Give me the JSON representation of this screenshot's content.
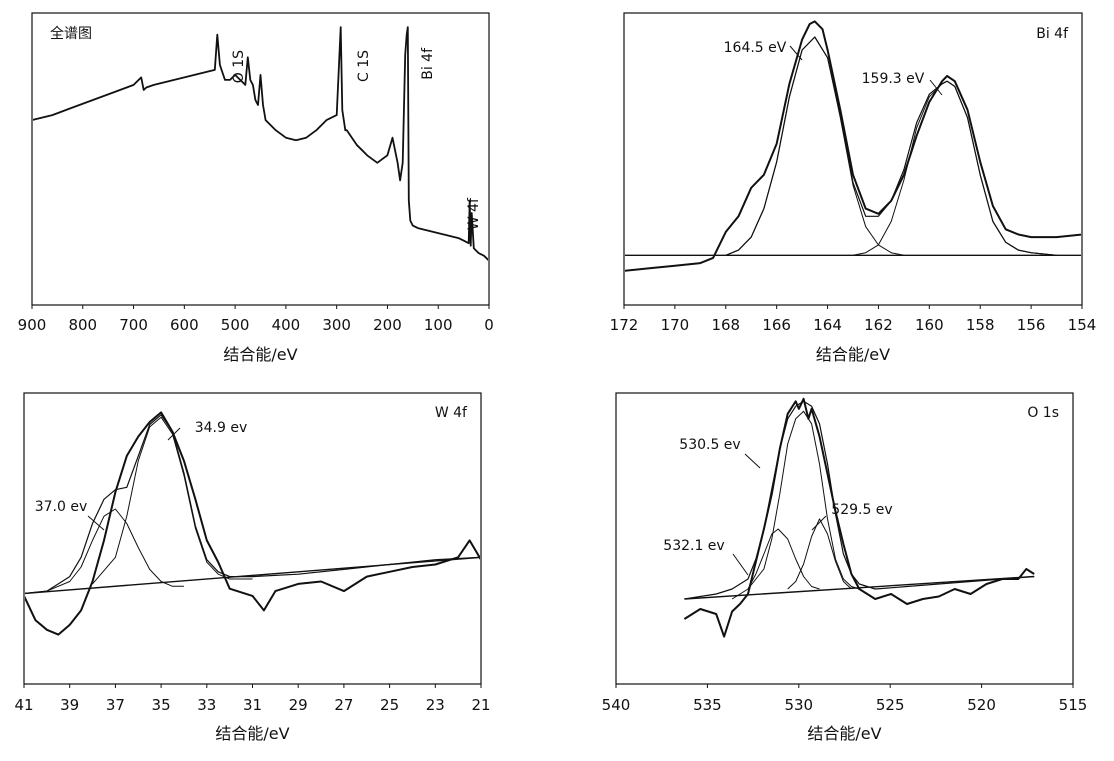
{
  "chart_data": [
    {
      "type": "line",
      "title": "全谱图",
      "xlabel": "结合能/eV",
      "ylabel": "",
      "x_reversed": true,
      "xlim": [
        900,
        0
      ],
      "xticks": [
        900,
        800,
        700,
        600,
        500,
        400,
        300,
        200,
        100,
        0
      ],
      "xtick_labels": [
        "900",
        "800",
        "700",
        "600",
        "500",
        "400",
        "300",
        "200",
        "100",
        "0"
      ],
      "ylim": [
        0,
        100
      ],
      "grid": false,
      "series": [
        {
          "role": "spectrum",
          "x": [
            900,
            860,
            820,
            780,
            740,
            700,
            685,
            680,
            675,
            660,
            620,
            580,
            560,
            540,
            535,
            530,
            525,
            520,
            510,
            500,
            490,
            480,
            475,
            470,
            465,
            460,
            455,
            450,
            445,
            440,
            420,
            400,
            380,
            360,
            340,
            320,
            300,
            292,
            289,
            286,
            283,
            280,
            270,
            260,
            250,
            240,
            220,
            200,
            190,
            180,
            175,
            170,
            165,
            162,
            160,
            158,
            155,
            150,
            140,
            120,
            100,
            80,
            60,
            50,
            40,
            38,
            36,
            34,
            30,
            25,
            20,
            10,
            5,
            0
          ],
          "y": [
            62,
            64,
            67,
            70,
            73,
            76,
            79,
            74,
            75,
            76,
            78,
            80,
            81,
            82,
            96,
            84,
            81,
            78,
            78,
            80,
            78,
            76,
            87,
            78,
            76,
            70,
            68,
            80,
            68,
            62,
            58,
            55,
            54,
            55,
            58,
            62,
            64,
            99,
            66,
            62,
            58,
            58,
            55,
            52,
            50,
            48,
            45,
            48,
            55,
            45,
            38,
            45,
            88,
            96,
            99,
            30,
            22,
            20,
            19,
            18,
            17,
            16,
            15,
            14,
            13,
            30,
            12,
            25,
            11,
            10,
            9,
            8,
            7,
            6
          ]
        }
      ],
      "annotations": [
        {
          "text": "O 1S",
          "x": 525
        },
        {
          "text": "C 1S",
          "x": 280
        },
        {
          "text": "Bi 4f",
          "x": 150
        },
        {
          "text": "W 4f",
          "x": 30
        }
      ]
    },
    {
      "type": "line",
      "title": "Bi 4f",
      "xlabel": "结合能/eV",
      "ylabel": "",
      "x_reversed": true,
      "xlim": [
        172,
        154
      ],
      "xticks": [
        172,
        170,
        168,
        166,
        164,
        162,
        160,
        158,
        156,
        154
      ],
      "xtick_labels": [
        "172",
        "170",
        "168",
        "166",
        "164",
        "162",
        "160",
        "158",
        "156",
        "154"
      ],
      "ylim": [
        0,
        100
      ],
      "grid": false,
      "series": [
        {
          "role": "raw-data",
          "x": [
            172,
            171,
            170,
            169,
            168.5,
            168,
            167.5,
            167,
            166.5,
            166,
            165.5,
            165,
            164.7,
            164.5,
            164.2,
            164,
            163.5,
            163,
            162.5,
            162,
            161.5,
            161,
            160.5,
            160,
            159.5,
            159.3,
            159,
            158.5,
            158,
            157.5,
            157,
            156.5,
            156,
            155,
            154
          ],
          "y": [
            3,
            4,
            5,
            6,
            8,
            18,
            24,
            35,
            40,
            52,
            75,
            92,
            98,
            99,
            96,
            88,
            65,
            40,
            27,
            25,
            30,
            40,
            55,
            68,
            76,
            78,
            76,
            65,
            45,
            28,
            19,
            17,
            16,
            16,
            17
          ]
        },
        {
          "role": "fit-peak",
          "x": [
            168,
            167.5,
            167,
            166.5,
            166,
            165.5,
            165,
            164.5,
            164,
            163.5,
            163,
            162.5,
            162,
            161.5,
            161
          ],
          "y": [
            9,
            11,
            16,
            27,
            45,
            70,
            88,
            93,
            85,
            62,
            36,
            20,
            13,
            10,
            9
          ]
        },
        {
          "role": "fit-peak",
          "x": [
            163,
            162.5,
            162,
            161.5,
            161,
            160.5,
            160,
            159.5,
            159.3,
            159,
            158.5,
            158,
            157.5,
            157,
            156.5,
            156,
            155
          ],
          "y": [
            9,
            10,
            13,
            22,
            38,
            58,
            70,
            75,
            76,
            74,
            62,
            40,
            22,
            14,
            11,
            10,
            9
          ]
        },
        {
          "role": "fit-envelope",
          "x": [
            168,
            167.5,
            167,
            166.5,
            166,
            165.5,
            165,
            164.5,
            164,
            163.5,
            163,
            162.5,
            162,
            161.5,
            161,
            160.5,
            160,
            159.5,
            159.3,
            159,
            158.5,
            158,
            157.5,
            157,
            156.5,
            156,
            155
          ],
          "y": [
            9,
            11,
            16,
            27,
            45,
            70,
            88,
            93,
            85,
            63,
            37,
            24,
            24,
            30,
            42,
            60,
            71,
            75,
            76,
            74,
            62,
            40,
            22,
            14,
            11,
            10,
            9
          ]
        },
        {
          "role": "baseline",
          "x": [
            172,
            154
          ],
          "y": [
            9,
            9
          ]
        }
      ],
      "annotations": [
        {
          "text": "164.5 eV",
          "x": 164.5
        },
        {
          "text": "159.3 eV",
          "x": 159.3
        }
      ]
    },
    {
      "type": "line",
      "title": "W 4f",
      "xlabel": "结合能/eV",
      "ylabel": "",
      "x_reversed": true,
      "xlim": [
        41,
        21
      ],
      "xticks": [
        41,
        39,
        37,
        35,
        33,
        31,
        29,
        27,
        25,
        23,
        21
      ],
      "xtick_labels": [
        "41",
        "39",
        "37",
        "35",
        "33",
        "31",
        "29",
        "27",
        "25",
        "23",
        "21"
      ],
      "ylim": [
        0,
        100
      ],
      "grid": false,
      "series": [
        {
          "role": "raw-data",
          "x": [
            41,
            40.5,
            40,
            39.5,
            39,
            38.5,
            38,
            37.5,
            37,
            36.5,
            36,
            35.5,
            35,
            34.5,
            34,
            33.5,
            33,
            32.5,
            32,
            31,
            30.5,
            30,
            29,
            28,
            27,
            26,
            25,
            24,
            23,
            22,
            21.5,
            21
          ],
          "y": [
            22,
            12,
            8,
            6,
            10,
            16,
            28,
            45,
            65,
            80,
            88,
            94,
            98,
            90,
            78,
            62,
            45,
            36,
            25,
            22,
            16,
            24,
            27,
            28,
            24,
            30,
            32,
            34,
            35,
            38,
            45,
            37
          ]
        },
        {
          "role": "fit-peak",
          "x": [
            41,
            40,
            39,
            38.5,
            38,
            37.5,
            37,
            36.5,
            36,
            35.5,
            35,
            34.5,
            34
          ],
          "y": [
            23,
            24,
            28,
            34,
            45,
            55,
            58,
            52,
            42,
            33,
            28,
            26,
            26
          ]
        },
        {
          "role": "fit-peak",
          "x": [
            38,
            37,
            36.5,
            36,
            35.5,
            35,
            34.5,
            34,
            33.5,
            33,
            32.5,
            32,
            31
          ],
          "y": [
            27,
            38,
            55,
            78,
            92,
            96,
            89,
            72,
            50,
            36,
            31,
            29,
            29
          ]
        },
        {
          "role": "fit-envelope",
          "x": [
            41,
            40,
            39,
            38.5,
            38,
            37.5,
            37,
            36.5,
            36,
            35.5,
            35,
            34.5,
            34,
            33.5,
            33,
            32.5,
            32,
            31,
            29,
            27,
            25,
            23,
            21
          ],
          "y": [
            23,
            24,
            30,
            38,
            52,
            62,
            66,
            67,
            80,
            93,
            97,
            90,
            73,
            51,
            37,
            32,
            30,
            30,
            31,
            33,
            35,
            37,
            38
          ]
        },
        {
          "role": "baseline",
          "x": [
            41,
            21
          ],
          "y": [
            23,
            38
          ]
        }
      ],
      "annotations": [
        {
          "text": "34.9 ev",
          "x": 34.9
        },
        {
          "text": "37.0 ev",
          "x": 37.0
        }
      ]
    },
    {
      "type": "line",
      "title": "O 1s",
      "xlabel": "结合能/eV",
      "ylabel": "",
      "x_reversed": true,
      "xlim": [
        540,
        515
      ],
      "xticks": [
        540,
        535,
        530,
        525,
        520,
        515
      ],
      "xtick_labels": [
        "540",
        "535",
        "530",
        "525",
        "520",
        "515"
      ],
      "ylim": [
        0,
        100
      ],
      "grid": false,
      "series": [
        {
          "role": "raw-data",
          "x": [
            538,
            537,
            536,
            535.5,
            535,
            534.5,
            534,
            533.5,
            533,
            532.5,
            532,
            531.5,
            531,
            530.8,
            530.5,
            530.2,
            530,
            529.5,
            529,
            528.5,
            528,
            527.5,
            527,
            526,
            525,
            524,
            523,
            522,
            521,
            520,
            519,
            518,
            517,
            516.5,
            516
          ],
          "y": [
            12,
            16,
            14,
            5,
            15,
            18,
            22,
            35,
            48,
            62,
            80,
            94,
            99,
            96,
            100,
            92,
            96,
            85,
            70,
            55,
            42,
            30,
            24,
            20,
            22,
            18,
            20,
            21,
            24,
            22,
            26,
            28,
            28,
            32,
            30
          ]
        },
        {
          "role": "fit-peak",
          "x": [
            535,
            534,
            533.5,
            533,
            532.5,
            532.1,
            531.5,
            531,
            530.5,
            530,
            529.5
          ],
          "y": [
            20,
            24,
            30,
            38,
            46,
            48,
            44,
            36,
            29,
            25,
            24
          ]
        },
        {
          "role": "fit-peak",
          "x": [
            534,
            533,
            532.5,
            532,
            531.5,
            531,
            530.5,
            530,
            529.5,
            529,
            528.5,
            528,
            527.5,
            527
          ],
          "y": [
            24,
            32,
            44,
            62,
            82,
            92,
            95,
            90,
            74,
            52,
            36,
            28,
            25,
            24
          ]
        },
        {
          "role": "fit-peak",
          "x": [
            531.5,
            531,
            530.5,
            530,
            529.5,
            529,
            528.5,
            528,
            527.5
          ],
          "y": [
            24,
            27,
            34,
            45,
            52,
            46,
            35,
            27,
            24
          ]
        },
        {
          "role": "fit-envelope",
          "x": [
            538,
            536,
            535,
            534,
            533.5,
            533,
            532.5,
            532,
            531.5,
            531,
            530.5,
            530,
            529.5,
            529,
            528.5,
            528,
            527.5,
            527,
            526,
            524,
            522,
            520,
            518,
            516
          ],
          "y": [
            20,
            22,
            24,
            28,
            36,
            48,
            64,
            80,
            92,
            97,
            99,
            97,
            90,
            74,
            54,
            38,
            30,
            26,
            24,
            25,
            26,
            27,
            28,
            29
          ]
        },
        {
          "role": "baseline",
          "x": [
            538,
            516
          ],
          "y": [
            20,
            29
          ]
        }
      ],
      "annotations": [
        {
          "text": "530.5 ev",
          "x": 530.5
        },
        {
          "text": "529.5 ev",
          "x": 529.5
        },
        {
          "text": "532.1 ev",
          "x": 532.1
        }
      ]
    }
  ]
}
